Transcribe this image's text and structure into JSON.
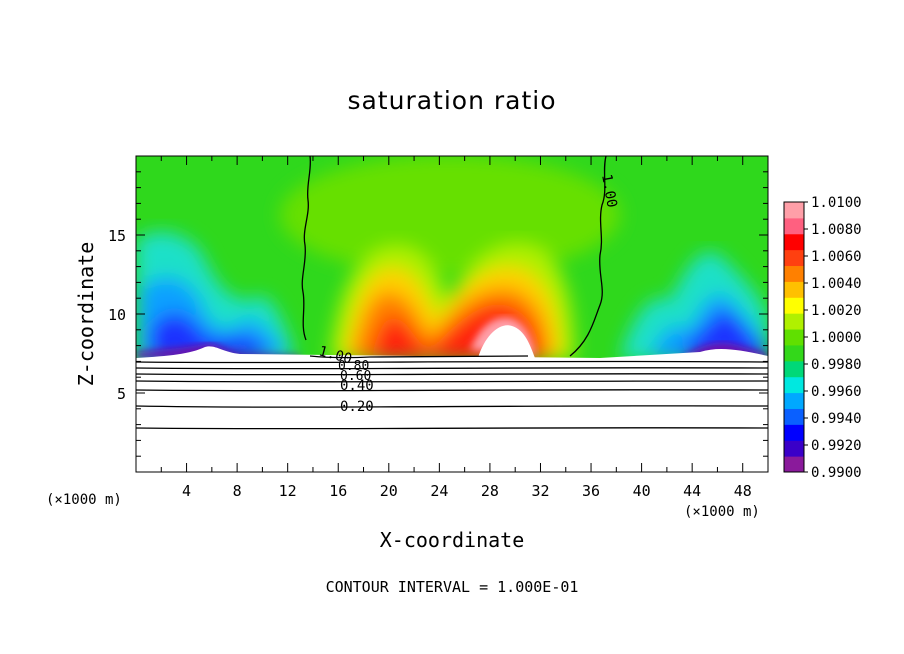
{
  "chart_data": {
    "type": "heatmap",
    "title": "saturation ratio",
    "xlabel": "X-coordinate",
    "ylabel": "Z-coordinate",
    "x_unit": "(×1000 m)",
    "x_unit_right": "(×1000 m)",
    "xlim": [
      0,
      50
    ],
    "ylim": [
      0,
      20
    ],
    "x_ticks": [
      "4",
      "8",
      "12",
      "16",
      "20",
      "24",
      "28",
      "32",
      "36",
      "40",
      "44",
      "48"
    ],
    "x_tick_values": [
      4,
      8,
      12,
      16,
      20,
      24,
      28,
      32,
      36,
      40,
      44,
      48
    ],
    "y_ticks": [
      "5",
      "10",
      "15"
    ],
    "y_tick_values": [
      5,
      10,
      15
    ],
    "contour_labels": [
      "1.00",
      "1.00",
      "0.80",
      "0.60",
      "0.40",
      "0.20"
    ],
    "footer": "CONTOUR INTERVAL = 1.000E-01",
    "colorbar": {
      "labels": [
        "1.0100",
        "1.0080",
        "1.0060",
        "1.0040",
        "1.0020",
        "1.0000",
        "0.9980",
        "0.9960",
        "0.9940",
        "0.9920",
        "0.9900"
      ],
      "colors": [
        "#8a1a9b",
        "#3a00c8",
        "#0000ff",
        "#0a60ff",
        "#00a8ff",
        "#00e8e0",
        "#00d878",
        "#33d81a",
        "#60e000",
        "#b0f000",
        "#ffff00",
        "#ffc000",
        "#ff8000",
        "#ff4010",
        "#ff0000",
        "#ff6080",
        "#ff9fa8"
      ]
    }
  }
}
